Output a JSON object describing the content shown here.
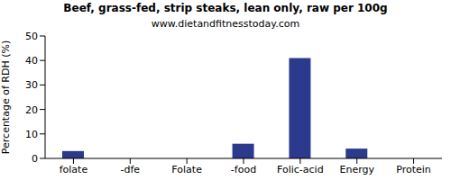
{
  "chart_data": {
    "type": "bar",
    "title": "Beef, grass-fed, strip steaks, lean only, raw per 100g",
    "subtitle": "www.dietandfitnesstoday.com",
    "y_label": "Percentage of RDH (%)",
    "categories": [
      "folate",
      "-dfe",
      "Folate",
      "-food",
      "Folic-acid",
      "Energy",
      "Protein"
    ],
    "values": [
      3,
      0,
      0,
      6,
      41,
      4,
      0
    ],
    "color": "#2b3a8c",
    "ylim": [
      0,
      50
    ],
    "yticks": [
      0,
      10,
      20,
      30,
      40,
      50
    ],
    "grid": false
  }
}
